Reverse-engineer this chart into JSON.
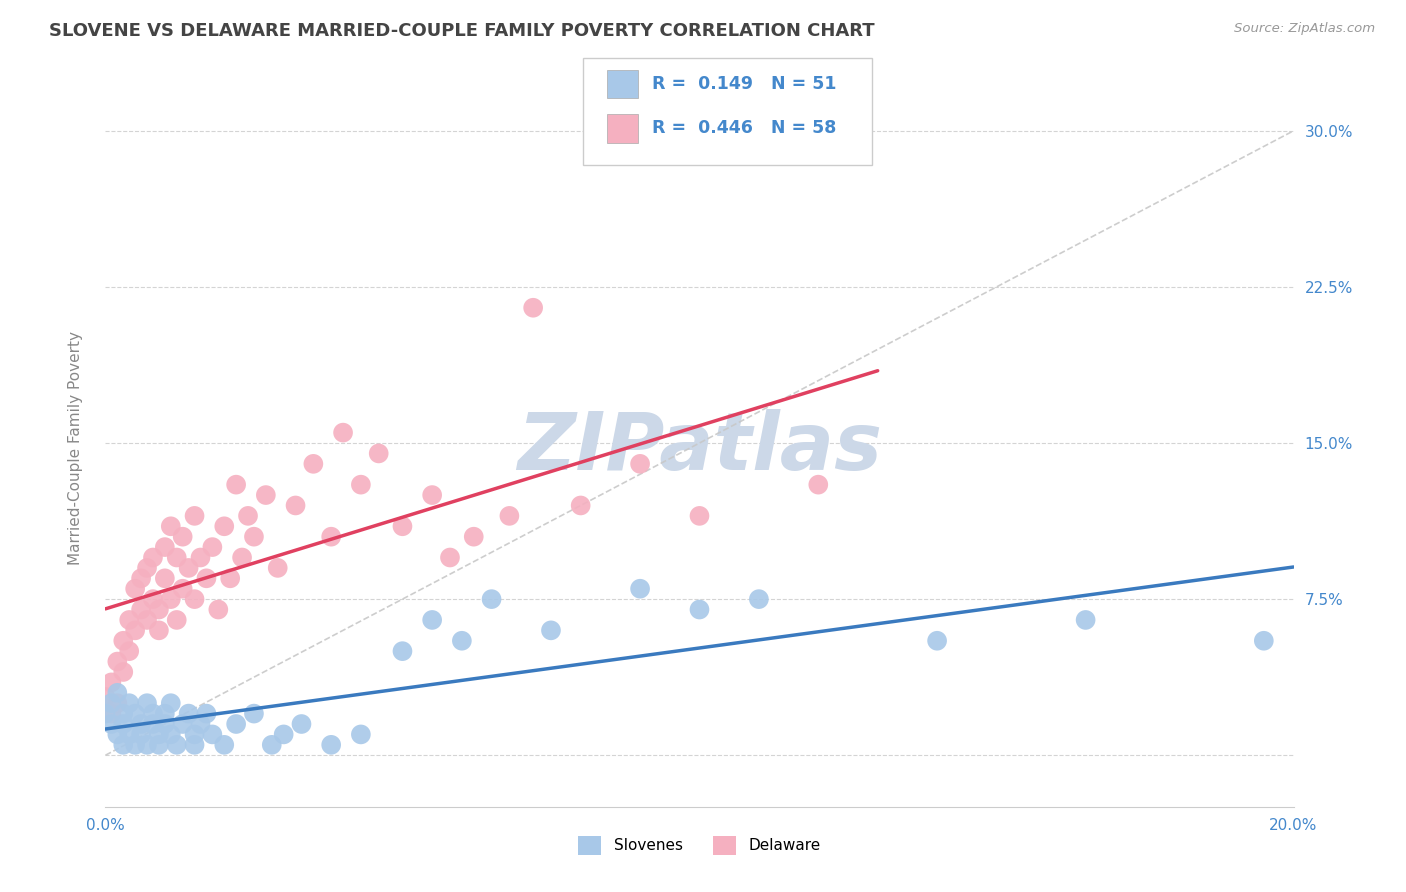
{
  "title": "SLOVENE VS DELAWARE MARRIED-COUPLE FAMILY POVERTY CORRELATION CHART",
  "source": "Source: ZipAtlas.com",
  "ylabel_label": "Married-Couple Family Poverty",
  "xlim": [
    0.0,
    0.2
  ],
  "ylim": [
    -0.025,
    0.32
  ],
  "xticks": [
    0.0,
    0.05,
    0.1,
    0.15,
    0.2
  ],
  "xtick_labels": [
    "0.0%",
    "",
    "",
    "",
    "20.0%"
  ],
  "yticks": [
    0.0,
    0.075,
    0.15,
    0.225,
    0.3
  ],
  "ytick_labels": [
    "",
    "7.5%",
    "15.0%",
    "22.5%",
    "30.0%"
  ],
  "slovenes_R": 0.149,
  "slovenes_N": 51,
  "delaware_R": 0.446,
  "delaware_N": 58,
  "background_color": "#ffffff",
  "grid_color": "#d0d0d0",
  "slovenes_color": "#a8c8e8",
  "delaware_color": "#f5b0c0",
  "slovenes_line_color": "#3a7abf",
  "delaware_line_color": "#e04060",
  "trend_line_color": "#c8c8c8",
  "title_color": "#444444",
  "axis_label_color": "#888888",
  "tick_label_color": "#4488cc",
  "watermark": "ZIPatlas",
  "watermark_color": "#ccd8e8",
  "slovenes_scatter_x": [
    0.0,
    0.001,
    0.001,
    0.002,
    0.002,
    0.003,
    0.003,
    0.003,
    0.004,
    0.004,
    0.005,
    0.005,
    0.006,
    0.006,
    0.007,
    0.007,
    0.008,
    0.008,
    0.009,
    0.009,
    0.01,
    0.01,
    0.011,
    0.011,
    0.012,
    0.013,
    0.014,
    0.015,
    0.015,
    0.016,
    0.017,
    0.018,
    0.02,
    0.022,
    0.025,
    0.028,
    0.03,
    0.033,
    0.038,
    0.043,
    0.05,
    0.055,
    0.06,
    0.065,
    0.075,
    0.09,
    0.1,
    0.11,
    0.14,
    0.165,
    0.195
  ],
  "slovenes_scatter_y": [
    0.02,
    0.015,
    0.025,
    0.01,
    0.03,
    0.005,
    0.02,
    0.015,
    0.01,
    0.025,
    0.005,
    0.02,
    0.015,
    0.01,
    0.025,
    0.005,
    0.015,
    0.02,
    0.01,
    0.005,
    0.02,
    0.015,
    0.01,
    0.025,
    0.005,
    0.015,
    0.02,
    0.01,
    0.005,
    0.015,
    0.02,
    0.01,
    0.005,
    0.015,
    0.02,
    0.005,
    0.01,
    0.015,
    0.005,
    0.01,
    0.05,
    0.065,
    0.055,
    0.075,
    0.06,
    0.08,
    0.07,
    0.075,
    0.055,
    0.065,
    0.055
  ],
  "delaware_scatter_x": [
    0.0,
    0.001,
    0.001,
    0.002,
    0.002,
    0.003,
    0.003,
    0.004,
    0.004,
    0.005,
    0.005,
    0.006,
    0.006,
    0.007,
    0.007,
    0.008,
    0.008,
    0.009,
    0.009,
    0.01,
    0.01,
    0.011,
    0.011,
    0.012,
    0.012,
    0.013,
    0.013,
    0.014,
    0.015,
    0.015,
    0.016,
    0.017,
    0.018,
    0.019,
    0.02,
    0.021,
    0.022,
    0.023,
    0.024,
    0.025,
    0.027,
    0.029,
    0.032,
    0.035,
    0.038,
    0.04,
    0.043,
    0.046,
    0.05,
    0.055,
    0.058,
    0.062,
    0.068,
    0.072,
    0.08,
    0.09,
    0.1,
    0.12
  ],
  "delaware_scatter_y": [
    0.028,
    0.02,
    0.035,
    0.025,
    0.045,
    0.055,
    0.04,
    0.065,
    0.05,
    0.06,
    0.08,
    0.07,
    0.085,
    0.065,
    0.09,
    0.075,
    0.095,
    0.07,
    0.06,
    0.085,
    0.1,
    0.075,
    0.11,
    0.065,
    0.095,
    0.105,
    0.08,
    0.09,
    0.075,
    0.115,
    0.095,
    0.085,
    0.1,
    0.07,
    0.11,
    0.085,
    0.13,
    0.095,
    0.115,
    0.105,
    0.125,
    0.09,
    0.12,
    0.14,
    0.105,
    0.155,
    0.13,
    0.145,
    0.11,
    0.125,
    0.095,
    0.105,
    0.115,
    0.215,
    0.12,
    0.14,
    0.115,
    0.13
  ]
}
